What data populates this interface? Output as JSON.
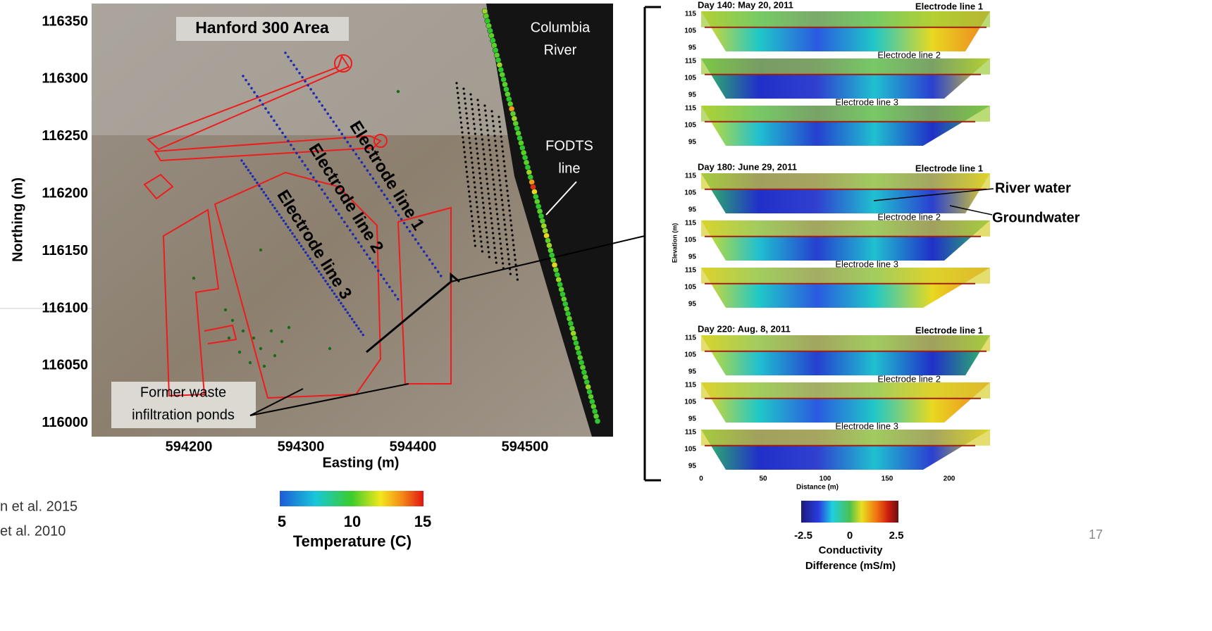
{
  "map": {
    "title": "Hanford 300 Area",
    "river_label": [
      "Columbia",
      "River"
    ],
    "fodts_label": [
      "FODTS",
      "line"
    ],
    "electrode_lines": [
      "Electrode line 1",
      "Electrode line 2",
      "Electrode line 3"
    ],
    "ponds_label": [
      "Former waste",
      "infiltration ponds"
    ],
    "y_axis_label": "Northing (m)",
    "x_axis_label": "Easting (m)",
    "y_ticks": [
      116350,
      116300,
      116250,
      116200,
      116150,
      116100,
      116050,
      116000
    ],
    "x_ticks": [
      594200,
      594300,
      594400,
      594500
    ]
  },
  "temperature_colorbar": {
    "ticks": [
      5,
      10,
      15
    ],
    "label": "Temperature (C)"
  },
  "profiles": {
    "panels": [
      {
        "title": "Day 140: May 20, 2011",
        "lines": [
          "Electrode line 1",
          "Electrode line 2",
          "Electrode line 3"
        ]
      },
      {
        "title": "Day 180: June 29, 2011",
        "lines": [
          "Electrode line 1",
          "Electrode line 2",
          "Electrode line 3"
        ]
      },
      {
        "title": "Day 220: Aug. 8, 2011",
        "lines": [
          "Electrode line 1",
          "Electrode line 2",
          "Electrode line 3"
        ]
      }
    ],
    "elevation_ticks": [
      115,
      105,
      95
    ],
    "y_axis_label": "Elevation (m)",
    "x_ticks": [
      0,
      50,
      100,
      150,
      200
    ],
    "x_axis_label": "Distance (m)",
    "annotations": [
      "River water",
      "Groundwater"
    ]
  },
  "conductivity_colorbar": {
    "ticks": [
      -2.5,
      0,
      2.5
    ],
    "label": [
      "Conductivity",
      "Difference (mS/m)"
    ]
  },
  "citations": [
    "n et al. 2015",
    "et al. 2010"
  ],
  "slide_number": 17
}
